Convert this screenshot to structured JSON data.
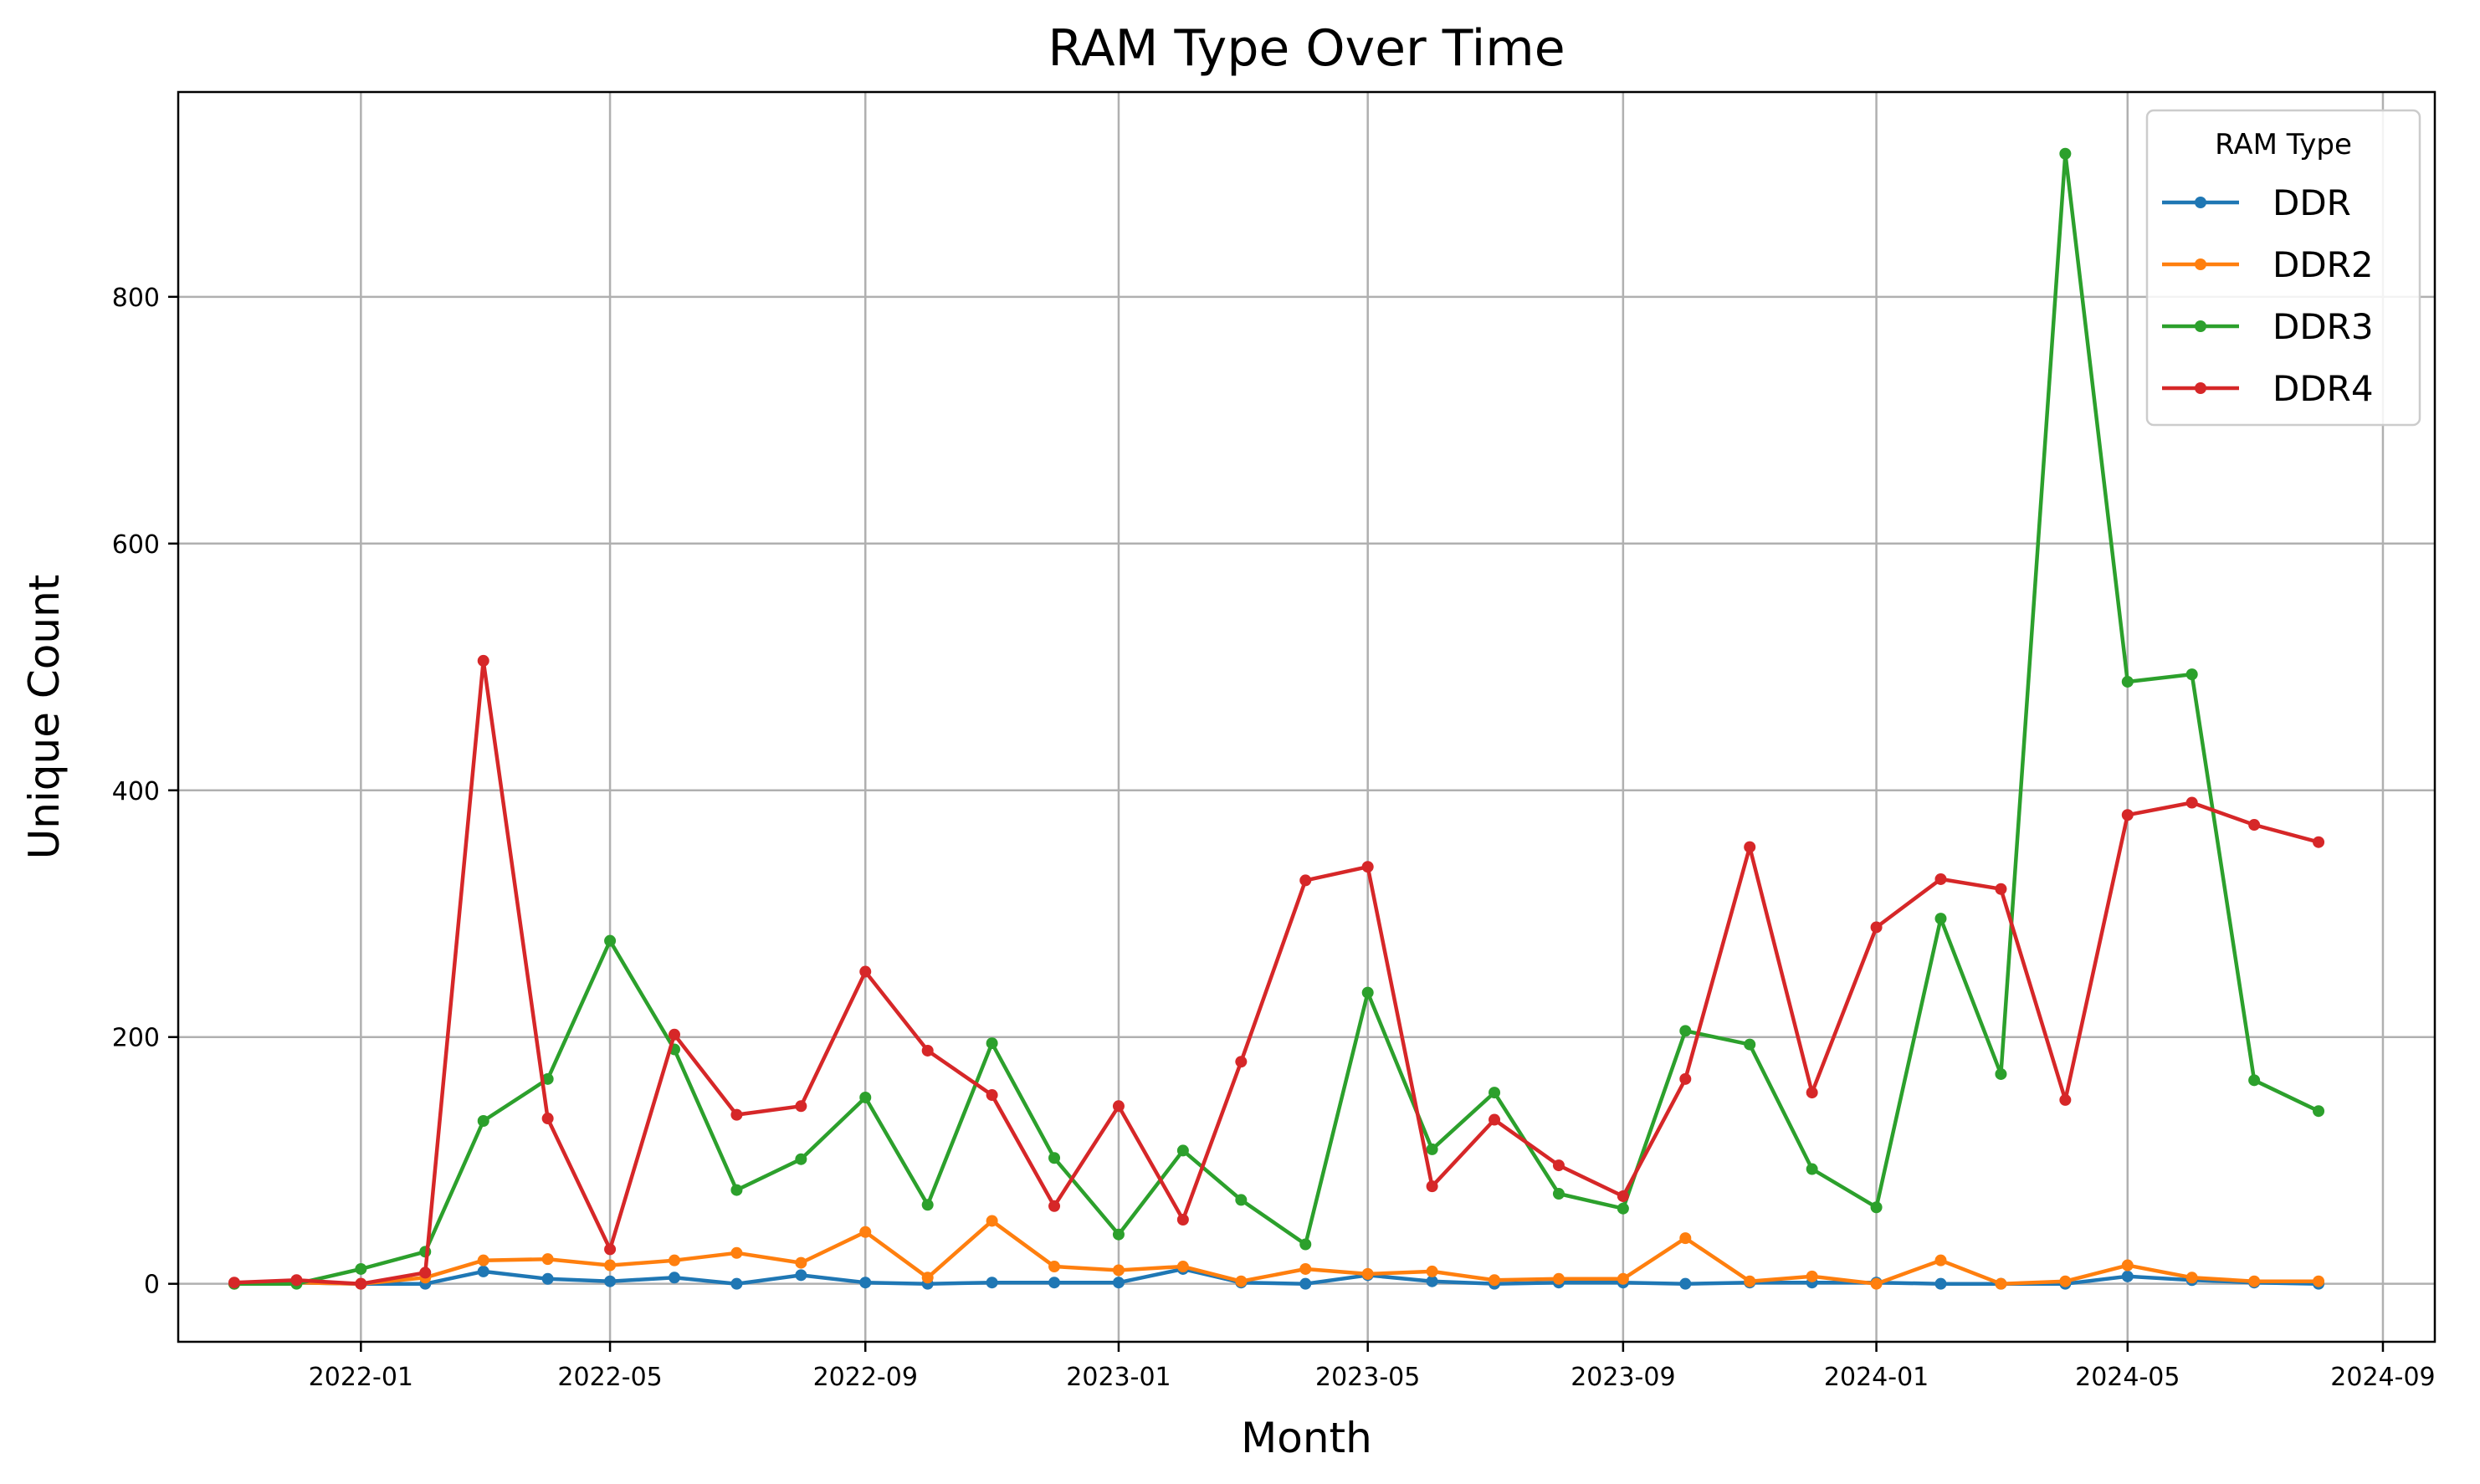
{
  "chart_data": {
    "type": "line",
    "title": "RAM Type Over Time",
    "xlabel": "Month",
    "ylabel": "Unique Count",
    "x": [
      "2021-11",
      "2021-12",
      "2022-01",
      "2022-02",
      "2022-03",
      "2022-04",
      "2022-05",
      "2022-06",
      "2022-07",
      "2022-08",
      "2022-09",
      "2022-10",
      "2022-11",
      "2022-12",
      "2023-01",
      "2023-02",
      "2023-03",
      "2023-04",
      "2023-05",
      "2023-06",
      "2023-07",
      "2023-08",
      "2023-09",
      "2023-10",
      "2023-11",
      "2023-12",
      "2024-01",
      "2024-02",
      "2024-03",
      "2024-04",
      "2024-05",
      "2024-06",
      "2024-07",
      "2024-08"
    ],
    "xticks": [
      "2022-01",
      "2022-05",
      "2022-09",
      "2023-01",
      "2023-05",
      "2023-09",
      "2024-01",
      "2024-05",
      "2024-09"
    ],
    "yticks": [
      0,
      200,
      400,
      600,
      800
    ],
    "ylim": [
      -47,
      966
    ],
    "xlim": [
      "2021-10-05",
      "2024-09-26"
    ],
    "grid": true,
    "legend": {
      "title": "RAM Type",
      "position": "top-right"
    },
    "series": [
      {
        "name": "DDR",
        "color": "#1f77b4",
        "values": [
          0,
          1,
          0,
          0,
          10,
          4,
          2,
          5,
          0,
          7,
          1,
          0,
          1,
          1,
          1,
          12,
          1,
          0,
          7,
          2,
          0,
          1,
          1,
          0,
          1,
          1,
          1,
          0,
          0,
          0,
          6,
          3,
          1,
          0
        ]
      },
      {
        "name": "DDR2",
        "color": "#ff7f0e",
        "values": [
          0,
          1,
          0,
          5,
          19,
          20,
          15,
          19,
          25,
          17,
          42,
          5,
          51,
          14,
          11,
          14,
          2,
          12,
          8,
          10,
          3,
          4,
          4,
          37,
          2,
          6,
          0,
          19,
          0,
          2,
          15,
          5,
          2,
          2
        ]
      },
      {
        "name": "DDR3",
        "color": "#2ca02c",
        "values": [
          0,
          0,
          12,
          26,
          132,
          166,
          278,
          190,
          76,
          101,
          151,
          64,
          195,
          102,
          40,
          108,
          68,
          32,
          236,
          109,
          155,
          73,
          61,
          205,
          194,
          93,
          62,
          296,
          170,
          916,
          488,
          494,
          165,
          140
        ]
      },
      {
        "name": "DDR4",
        "color": "#d62728",
        "values": [
          1,
          3,
          0,
          9,
          505,
          134,
          28,
          202,
          137,
          144,
          253,
          189,
          153,
          63,
          144,
          52,
          180,
          327,
          338,
          79,
          133,
          96,
          71,
          166,
          354,
          155,
          289,
          328,
          320,
          149,
          380,
          390,
          372,
          358
        ]
      }
    ]
  }
}
